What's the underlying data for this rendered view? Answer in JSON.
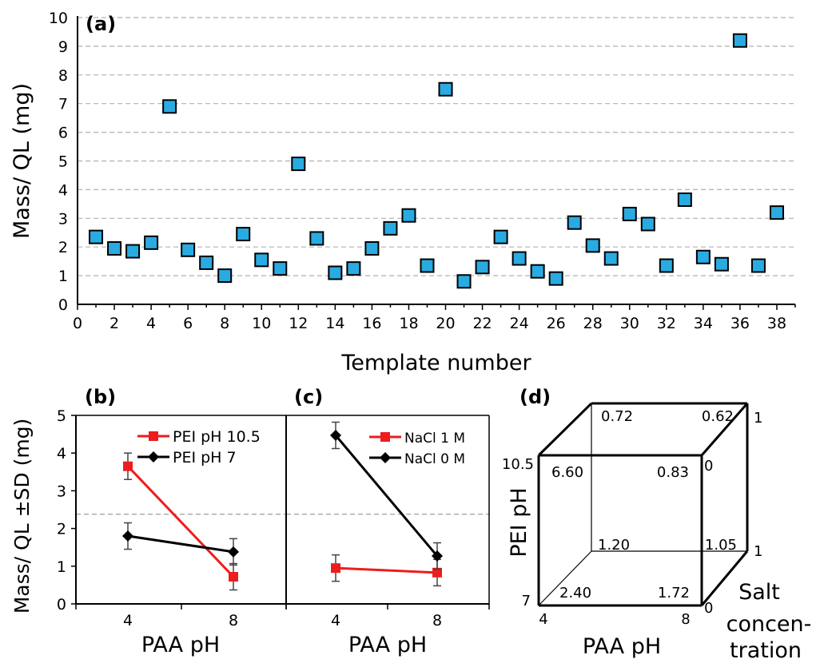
{
  "chart_data": [
    {
      "panel": "(a)",
      "type": "scatter",
      "xlabel": "Template number",
      "ylabel": "Mass/ QL (mg)",
      "xlim": [
        0,
        39
      ],
      "ylim": [
        0,
        10
      ],
      "x_ticks": [
        0,
        2,
        4,
        6,
        8,
        10,
        12,
        14,
        16,
        18,
        20,
        22,
        24,
        26,
        28,
        30,
        32,
        34,
        36,
        38
      ],
      "y_ticks": [
        0,
        1,
        2,
        3,
        4,
        5,
        6,
        7,
        8,
        9,
        10
      ],
      "grid": "horizontal dashed",
      "marker_color": "#29abe2",
      "x": [
        1,
        2,
        3,
        4,
        5,
        6,
        7,
        8,
        9,
        10,
        11,
        12,
        13,
        14,
        15,
        16,
        17,
        18,
        19,
        20,
        21,
        22,
        23,
        24,
        25,
        26,
        27,
        28,
        29,
        30,
        31,
        32,
        33,
        34,
        35,
        36,
        37,
        38
      ],
      "y": [
        2.35,
        1.95,
        1.85,
        2.15,
        6.9,
        1.9,
        1.45,
        1.0,
        2.45,
        1.55,
        1.25,
        4.9,
        2.3,
        1.1,
        1.25,
        1.95,
        2.65,
        3.1,
        1.35,
        7.5,
        0.8,
        1.3,
        2.35,
        1.6,
        1.15,
        0.9,
        2.85,
        2.05,
        1.6,
        3.15,
        2.8,
        1.35,
        3.65,
        1.65,
        1.4,
        9.2,
        1.35,
        3.2
      ]
    },
    {
      "panel": "(b)",
      "type": "line",
      "xlabel": "PAA pH",
      "ylabel": "Mass/ QL ±SD (mg)",
      "categories": [
        "4",
        "8"
      ],
      "ylim": [
        0,
        5
      ],
      "y_ticks": [
        0,
        1,
        2,
        3,
        4,
        5
      ],
      "reference_line": 2.38,
      "legend": "top-right",
      "series": [
        {
          "name": "PEI pH 10.5",
          "color": "#ee1c1c",
          "marker": "square",
          "values": [
            3.65,
            0.72
          ],
          "err": [
            0.35,
            0.35
          ]
        },
        {
          "name": "PEI pH 7",
          "color": "#000000",
          "marker": "diamond",
          "values": [
            1.8,
            1.38
          ],
          "err": [
            0.35,
            0.35
          ]
        }
      ]
    },
    {
      "panel": "(c)",
      "type": "line",
      "xlabel": "PAA pH",
      "categories": [
        "4",
        "8"
      ],
      "ylim": [
        0,
        5
      ],
      "reference_line": 2.38,
      "legend": "top-right",
      "series": [
        {
          "name": "NaCl 1 M",
          "color": "#ee1c1c",
          "marker": "square",
          "values": [
            0.95,
            0.83
          ],
          "err": [
            0.35,
            0.35
          ]
        },
        {
          "name": "NaCl 0 M",
          "color": "#000000",
          "marker": "diamond",
          "values": [
            4.47,
            1.27
          ],
          "err": [
            0.35,
            0.35
          ]
        }
      ]
    },
    {
      "panel": "(d)",
      "type": "table",
      "xlabel": "PAA pH",
      "ylabel": "PEI pH",
      "zlabel": [
        "Salt",
        "concen-",
        "tration"
      ],
      "axis_ticks": {
        "paa_low": "4",
        "paa_high": "8",
        "pei_low": "7",
        "pei_high": "10.5",
        "salt_front_low": "0",
        "salt_front_high": "0",
        "salt_back_low": "1",
        "salt_back_high": "1"
      },
      "corners": [
        {
          "paa": "4",
          "pei": "10.5",
          "salt": "0",
          "value": "6.60"
        },
        {
          "paa": "8",
          "pei": "10.5",
          "salt": "0",
          "value": "0.83"
        },
        {
          "paa": "4",
          "pei": "10.5",
          "salt": "1",
          "value": "0.72"
        },
        {
          "paa": "8",
          "pei": "10.5",
          "salt": "1",
          "value": "0.62"
        },
        {
          "paa": "4",
          "pei": "7",
          "salt": "1",
          "value": "1.20"
        },
        {
          "paa": "8",
          "pei": "7",
          "salt": "1",
          "value": "1.05"
        },
        {
          "paa": "4",
          "pei": "7",
          "salt": "0",
          "value": "2.40"
        },
        {
          "paa": "8",
          "pei": "7",
          "salt": "0",
          "value": "1.72"
        }
      ]
    }
  ]
}
